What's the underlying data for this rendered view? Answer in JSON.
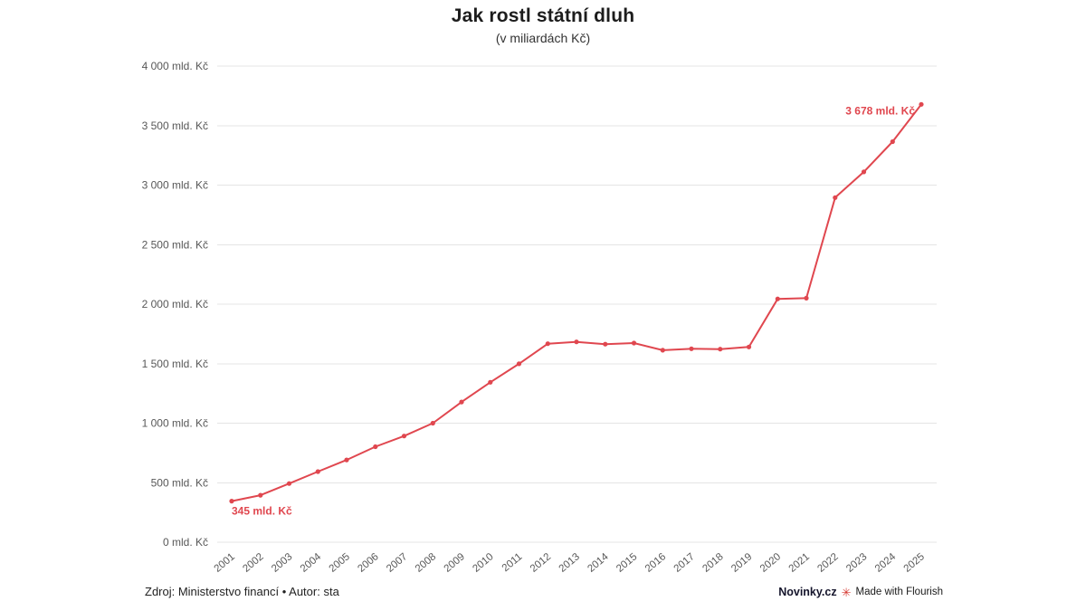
{
  "title": "Jak rostl státní dluh",
  "subtitle": "(v miliardách Kč)",
  "footer": {
    "source": "Zdroj: Ministerstvo financí • Autor: sta",
    "brand": "Novinky.cz",
    "made_with": "Made with Flourish"
  },
  "icons": {
    "flourish": "✳"
  },
  "chart_data": {
    "type": "line",
    "title": "Jak rostl státní dluh",
    "subtitle": "(v miliardách Kč)",
    "x": [
      "2001",
      "2002",
      "2003",
      "2004",
      "2005",
      "2006",
      "2007",
      "2008",
      "2009",
      "2010",
      "2011",
      "2012",
      "2013",
      "2014",
      "2015",
      "2016",
      "2017",
      "2018",
      "2019",
      "2020",
      "2021",
      "2022",
      "2023",
      "2024",
      "2025"
    ],
    "values": [
      345,
      395,
      493,
      593,
      691,
      802,
      892,
      1000,
      1178,
      1344,
      1499,
      1668,
      1683,
      1664,
      1673,
      1613,
      1625,
      1622,
      1640,
      2044,
      2050,
      2895,
      3111,
      3365,
      3678
    ],
    "unit": "mld. Kč",
    "ylim": [
      0,
      4000
    ],
    "ytick_step": 500,
    "ytick_labels": [
      "0 mld. Kč",
      "500 mld. Kč",
      "1 000 mld. Kč",
      "1 500 mld. Kč",
      "2 000 mld. Kč",
      "2 500 mld. Kč",
      "3 000 mld. Kč",
      "3 500 mld. Kč",
      "4 000 mld. Kč"
    ],
    "grid": true,
    "legend": "none",
    "line_color": "#e0474f",
    "first_point_label": "345 mld. Kč",
    "last_point_label": "3 678 mld. Kč"
  }
}
